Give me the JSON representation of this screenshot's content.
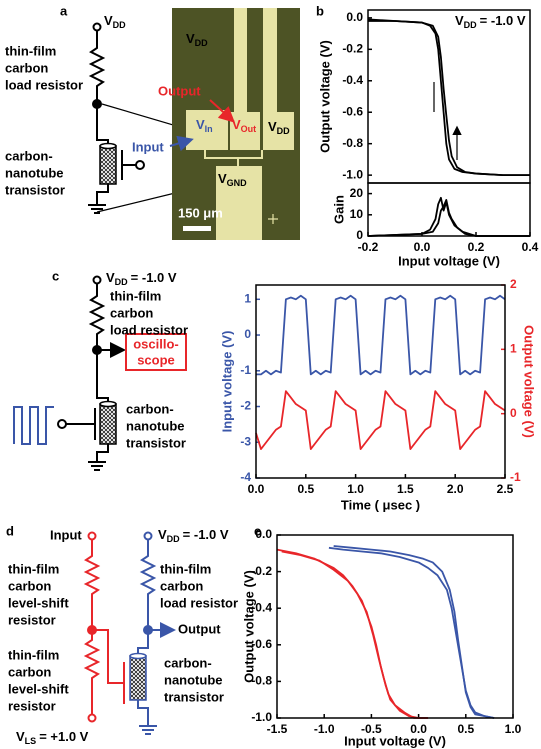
{
  "panel_labels": [
    "a",
    "b",
    "c",
    "d",
    "e"
  ],
  "panel_a": {
    "vdd": {
      "main": "V",
      "sub": "DD"
    },
    "load_resistor": [
      "thin-film",
      "carbon",
      "load resistor"
    ],
    "transistor": [
      "carbon-",
      "nanotube",
      "transistor"
    ],
    "micrograph": {
      "vdd_top": {
        "main": "V",
        "sub": "DD"
      },
      "output": "Output",
      "input": "Input",
      "vin": {
        "main": "V",
        "sub": "In"
      },
      "vout": {
        "main": "V",
        "sub": "Out"
      },
      "vdd_right": {
        "main": "V",
        "sub": "DD"
      },
      "vgnd": {
        "main": "V",
        "sub": "GND"
      },
      "scale": "150 μm"
    }
  },
  "panel_c": {
    "vdd": {
      "main": "V",
      "sub": "DD",
      "rest": "= -1.0 V"
    },
    "load_resistor": [
      "thin-film",
      "carbon",
      "load resistor"
    ],
    "scope": [
      "oscillo-",
      "scope"
    ],
    "transistor": [
      "carbon-",
      "nanotube",
      "transistor"
    ]
  },
  "panel_d": {
    "input": "Input",
    "level_shift_1": [
      "thin-film",
      "carbon",
      "level-shift",
      "resistor"
    ],
    "level_shift_2": [
      "thin-film",
      "carbon",
      "level-shift",
      "resistor"
    ],
    "vdd": {
      "main": "V",
      "sub": "DD",
      "rest": "= -1.0 V"
    },
    "load_resistor": [
      "thin-film",
      "carbon",
      "load resistor"
    ],
    "output": "Output",
    "transistor": [
      "carbon-",
      "nanotube",
      "transistor"
    ],
    "vls": {
      "main": "V",
      "sub": "LS",
      "rest": "= +1.0 V"
    }
  },
  "chart_data": [
    {
      "type": "line",
      "ylabel": "Output voltage (V)",
      "annotation": {
        "main": "V",
        "sub": "DD",
        "rest": "= -1.0 V"
      },
      "xlim": [
        -0.2,
        0.4
      ],
      "ylim": [
        -1.05,
        0.05
      ],
      "yticks": [
        {
          "value": 0,
          "label": "0.0"
        },
        -0.2,
        -0.4,
        -0.6,
        -0.8,
        {
          "value": -1,
          "label": "-1.0"
        }
      ],
      "series": [
        {
          "color": "#000000",
          "x": [
            -0.2,
            -0.1,
            0,
            0.03,
            0.05,
            0.06,
            0.07,
            0.08,
            0.09,
            0.1,
            0.12,
            0.15,
            0.2,
            0.3,
            0.4
          ],
          "values": [
            -0.02,
            -0.02,
            -0.03,
            -0.05,
            -0.1,
            -0.2,
            -0.4,
            -0.6,
            -0.8,
            -0.9,
            -0.96,
            -0.98,
            -0.99,
            -1.0,
            -1.0
          ]
        },
        {
          "color": "#000000",
          "x": [
            -0.2,
            -0.1,
            0,
            0.04,
            0.06,
            0.07,
            0.08,
            0.09,
            0.1,
            0.11,
            0.13,
            0.16,
            0.2,
            0.3,
            0.4
          ],
          "values": [
            -0.01,
            -0.02,
            -0.03,
            -0.05,
            -0.12,
            -0.25,
            -0.45,
            -0.62,
            -0.78,
            -0.88,
            -0.95,
            -0.98,
            -0.99,
            -1.0,
            -1.0
          ]
        }
      ]
    },
    {
      "type": "line",
      "ylabel": "Gain",
      "xlabel": "Input voltage (V)",
      "xlim": [
        -0.2,
        0.4
      ],
      "xticks": [
        -0.2,
        {
          "value": 0,
          "label": "0.0"
        },
        0.2,
        0.4
      ],
      "ylim": [
        0,
        25
      ],
      "yticks": [
        0,
        10,
        20
      ],
      "series": [
        {
          "color": "#000000",
          "x": [
            -0.2,
            0,
            0.03,
            0.05,
            0.06,
            0.07,
            0.08,
            0.09,
            0.1,
            0.12,
            0.15,
            0.2,
            0.4
          ],
          "values": [
            0,
            1,
            3,
            8,
            15,
            18,
            12,
            16,
            10,
            5,
            2,
            0,
            0
          ]
        },
        {
          "color": "#000000",
          "x": [
            -0.2,
            0,
            0.04,
            0.06,
            0.07,
            0.08,
            0.09,
            0.1,
            0.11,
            0.13,
            0.16,
            0.2,
            0.4
          ],
          "values": [
            0,
            1,
            2,
            6,
            12,
            14,
            17,
            11,
            8,
            4,
            1,
            0,
            0
          ]
        }
      ]
    },
    {
      "type": "line",
      "xlabel": "Time ( μsec )",
      "ylabel": "Input voltage (V)",
      "y2label": "Output voltage (V)",
      "xlim": [
        0,
        2.5
      ],
      "xticks": [
        {
          "value": 0,
          "label": "0.0"
        },
        0.5,
        {
          "value": 1,
          "label": "1.0"
        },
        1.5,
        {
          "value": 2,
          "label": "2.0"
        },
        2.5
      ],
      "ylim": [
        -4,
        1.4
      ],
      "yticks": [
        -4,
        -3,
        -2,
        -1,
        0,
        1
      ],
      "y2lim": [
        -1,
        2
      ],
      "y2ticks": [
        -1,
        0,
        1,
        2
      ],
      "x": [
        0,
        0.05,
        0.1,
        0.15,
        0.2,
        0.25,
        0.3,
        0.35,
        0.4,
        0.45,
        0.5,
        0.55,
        0.6,
        0.65,
        0.7,
        0.75,
        0.8,
        0.85,
        0.9,
        0.95,
        1,
        1.05,
        1.1,
        1.15,
        1.2,
        1.25,
        1.3,
        1.35,
        1.4,
        1.45,
        1.5,
        1.55,
        1.6,
        1.65,
        1.7,
        1.75,
        1.8,
        1.85,
        1.9,
        1.95,
        2,
        2.05,
        2.1,
        2.15,
        2.2,
        2.25,
        2.3,
        2.35,
        2.4,
        2.45,
        2.5
      ],
      "series": [
        {
          "color": "#3a56a8",
          "values": [
            -1.1,
            -1.1,
            -1.0,
            -1.1,
            -1.0,
            -1.05,
            1.0,
            1.05,
            1.0,
            1.1,
            1.0,
            -1.1,
            -1.0,
            -1.1,
            -1.0,
            -1.05,
            1.0,
            1.05,
            1.0,
            1.1,
            1.0,
            -1.1,
            -1.0,
            -1.1,
            -1.0,
            -1.05,
            1.0,
            1.05,
            1.0,
            1.1,
            1.0,
            -1.1,
            -1.0,
            -1.1,
            -1.0,
            -1.05,
            1.0,
            1.05,
            1.0,
            1.1,
            1.0,
            -1.1,
            -1.0,
            -1.1,
            -1.0,
            -1.05,
            1.0,
            1.05,
            1.0,
            1.1,
            1.0
          ]
        },
        {
          "color": "#e8262a",
          "axis": "y2",
          "values": [
            -0.3,
            -0.55,
            -0.45,
            -0.35,
            -0.25,
            -0.2,
            0.35,
            0.25,
            0.15,
            0.1,
            0.05,
            -0.55,
            -0.45,
            -0.35,
            -0.25,
            -0.2,
            0.35,
            0.25,
            0.15,
            0.1,
            0.05,
            -0.55,
            -0.45,
            -0.35,
            -0.25,
            -0.2,
            0.35,
            0.25,
            0.15,
            0.1,
            0.05,
            -0.55,
            -0.45,
            -0.35,
            -0.25,
            -0.2,
            0.35,
            0.25,
            0.15,
            0.1,
            0.05,
            -0.55,
            -0.45,
            -0.35,
            -0.25,
            -0.2,
            0.35,
            0.25,
            0.15,
            0.1,
            0.05
          ]
        }
      ]
    },
    {
      "type": "line",
      "xlabel": "Input voltage (V)",
      "ylabel": "Output voltage (V)",
      "xlim": [
        -1.5,
        1.0
      ],
      "xticks": [
        -1.5,
        {
          "value": -1,
          "label": "-1.0"
        },
        -0.5,
        {
          "value": 0,
          "label": "0.0"
        },
        0.5,
        {
          "value": 1,
          "label": "1.0"
        }
      ],
      "ylim": [
        -1,
        0
      ],
      "yticks": [
        {
          "value": 0,
          "label": "0.0"
        },
        -0.2,
        -0.4,
        -0.6,
        -0.8,
        {
          "value": -1,
          "label": "-1.0"
        }
      ],
      "series": [
        {
          "color": "#3a56a8",
          "x": [
            -0.95,
            -0.8,
            -0.6,
            -0.4,
            -0.2,
            0,
            0.1,
            0.2,
            0.3,
            0.35,
            0.4,
            0.45,
            0.5,
            0.55,
            0.6,
            0.7,
            0.8
          ],
          "values": [
            -0.07,
            -0.08,
            -0.09,
            -0.1,
            -0.12,
            -0.15,
            -0.18,
            -0.22,
            -0.3,
            -0.4,
            -0.55,
            -0.7,
            -0.85,
            -0.93,
            -0.97,
            -0.99,
            -1.0
          ]
        },
        {
          "color": "#3a56a8",
          "x": [
            -0.9,
            -0.7,
            -0.5,
            -0.3,
            -0.1,
            0.05,
            0.15,
            0.25,
            0.33,
            0.38,
            0.42,
            0.46,
            0.5,
            0.55,
            0.6,
            0.7,
            0.8
          ],
          "values": [
            -0.06,
            -0.07,
            -0.08,
            -0.09,
            -0.11,
            -0.13,
            -0.15,
            -0.2,
            -0.3,
            -0.42,
            -0.58,
            -0.72,
            -0.86,
            -0.94,
            -0.98,
            -0.99,
            -1.0
          ]
        },
        {
          "color": "#e8262a",
          "x": [
            -1.5,
            -1.3,
            -1.1,
            -0.9,
            -0.8,
            -0.7,
            -0.6,
            -0.5,
            -0.45,
            -0.4,
            -0.35,
            -0.3,
            -0.2,
            -0.1,
            0,
            0.1
          ],
          "values": [
            -0.08,
            -0.1,
            -0.13,
            -0.18,
            -0.22,
            -0.28,
            -0.36,
            -0.5,
            -0.6,
            -0.72,
            -0.82,
            -0.9,
            -0.96,
            -0.99,
            -1.0,
            -1.0
          ]
        },
        {
          "color": "#e8262a",
          "x": [
            -1.45,
            -1.25,
            -1.05,
            -0.9,
            -0.75,
            -0.65,
            -0.55,
            -0.48,
            -0.42,
            -0.37,
            -0.32,
            -0.25,
            -0.15,
            -0.05,
            0.05,
            0.1
          ],
          "values": [
            -0.09,
            -0.11,
            -0.14,
            -0.19,
            -0.25,
            -0.32,
            -0.42,
            -0.55,
            -0.68,
            -0.78,
            -0.87,
            -0.93,
            -0.97,
            -1.0,
            -1.0,
            -1.0
          ]
        }
      ]
    }
  ]
}
